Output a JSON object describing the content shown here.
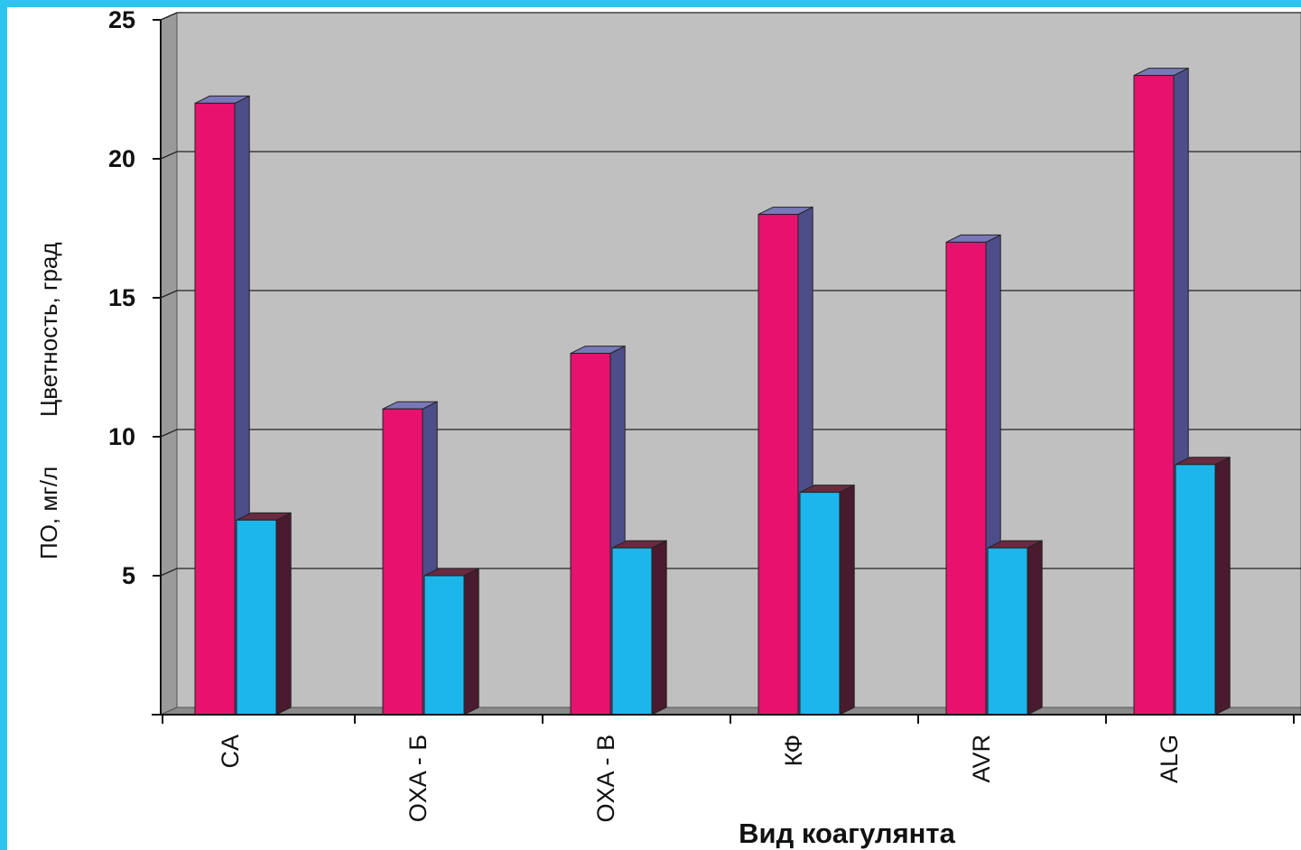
{
  "chart_data": {
    "type": "bar",
    "categories": [
      "CA",
      "OXA - Б",
      "OXA - B",
      "КФ",
      "AVR",
      "ALG"
    ],
    "series": [
      {
        "name": "Цветность, град",
        "values": [
          22,
          11,
          13,
          18,
          17,
          23
        ]
      },
      {
        "name": "ПО, мг/л",
        "values": [
          7,
          5,
          6,
          8,
          6,
          9
        ]
      }
    ],
    "ylabel_parts": [
      "ПО, мг/л",
      "Цветность, град"
    ],
    "xlabel": "Вид коагулянта",
    "ylim": [
      0,
      25
    ],
    "yticks": [
      "5",
      "10",
      "15",
      "20",
      "25"
    ],
    "grid": true,
    "style": "3d-clustered",
    "colors": {
      "frame": "#2ec4f0",
      "back_wall": "#c0c0c0",
      "side_wall": "#9a9a9a",
      "floor": "#8a8a8a",
      "series1_front": "#e8126e",
      "series1_side": "#4d4d8a",
      "series1_top": "#7878b8",
      "series2_front": "#1cb6ea",
      "series2_side": "#4a1a2e",
      "series2_top": "#6a2a40"
    }
  }
}
